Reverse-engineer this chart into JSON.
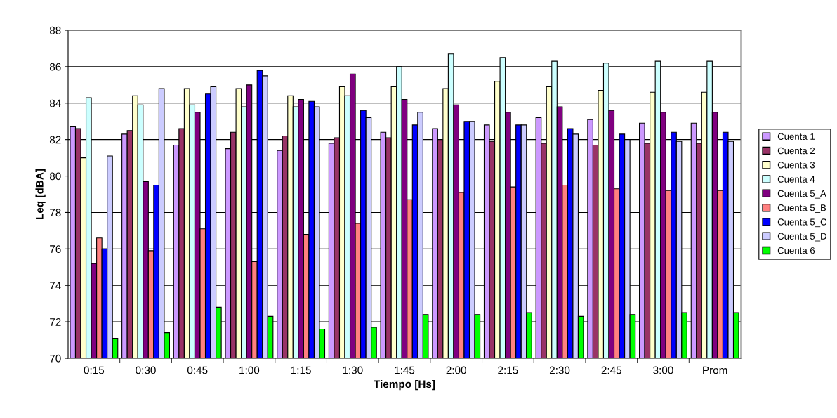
{
  "chart_data": {
    "type": "bar",
    "xlabel": "Tiempo [Hs]",
    "ylabel": "Leq [dBA]",
    "categories": [
      "0:15",
      "0:30",
      "0:45",
      "1:00",
      "1:15",
      "1:30",
      "1:45",
      "2:00",
      "2:15",
      "2:30",
      "2:45",
      "3:00",
      "Prom"
    ],
    "series": [
      {
        "name": "Cuenta 1",
        "color": "#cc99ff",
        "values": [
          82.7,
          82.3,
          81.7,
          81.5,
          81.4,
          81.8,
          82.4,
          82.6,
          82.8,
          83.2,
          83.1,
          82.9,
          82.9
        ]
      },
      {
        "name": "Cuenta 2",
        "color": "#993366",
        "values": [
          82.6,
          82.5,
          82.6,
          82.4,
          82.2,
          82.1,
          82.1,
          82.0,
          81.9,
          81.8,
          81.7,
          81.8,
          81.8
        ]
      },
      {
        "name": "Cuenta 3",
        "color": "#ffffcc",
        "values": [
          81.0,
          84.4,
          84.8,
          84.8,
          84.4,
          84.9,
          84.9,
          84.8,
          85.2,
          84.9,
          84.7,
          84.6,
          84.6
        ]
      },
      {
        "name": "Cuenta 4",
        "color": "#ccffff",
        "values": [
          84.3,
          83.9,
          83.9,
          83.8,
          83.8,
          84.4,
          86.0,
          86.7,
          86.5,
          86.3,
          86.2,
          86.3,
          86.3
        ]
      },
      {
        "name": "Cuenta 5_A",
        "color": "#800080",
        "values": [
          75.2,
          79.7,
          83.5,
          85.0,
          84.2,
          85.6,
          84.2,
          83.9,
          83.5,
          83.8,
          83.6,
          83.5,
          83.5
        ]
      },
      {
        "name": "Cuenta 5_B",
        "color": "#ff8080",
        "values": [
          76.6,
          75.9,
          77.1,
          75.3,
          76.8,
          77.4,
          78.7,
          79.1,
          79.4,
          79.5,
          79.3,
          79.2,
          79.2
        ]
      },
      {
        "name": "Cuenta 5_C",
        "color": "#0000ff",
        "values": [
          76.0,
          79.5,
          84.5,
          85.8,
          84.1,
          83.6,
          82.8,
          83.0,
          82.8,
          82.6,
          82.3,
          82.4,
          82.4
        ]
      },
      {
        "name": "Cuenta 5_D",
        "color": "#ccccff",
        "values": [
          81.1,
          84.8,
          84.9,
          85.5,
          83.8,
          83.2,
          83.5,
          83.0,
          82.8,
          82.3,
          82.0,
          81.9,
          81.9
        ]
      },
      {
        "name": "Cuenta 6",
        "color": "#00ff00",
        "values": [
          71.1,
          71.4,
          72.8,
          72.3,
          71.6,
          71.7,
          72.4,
          72.4,
          72.5,
          72.3,
          72.4,
          72.5,
          72.5
        ]
      }
    ],
    "ylim": [
      70,
      88
    ],
    "yticks": [
      70,
      72,
      74,
      76,
      78,
      80,
      82,
      84,
      86,
      88
    ],
    "grid": "y",
    "legend": "right"
  }
}
